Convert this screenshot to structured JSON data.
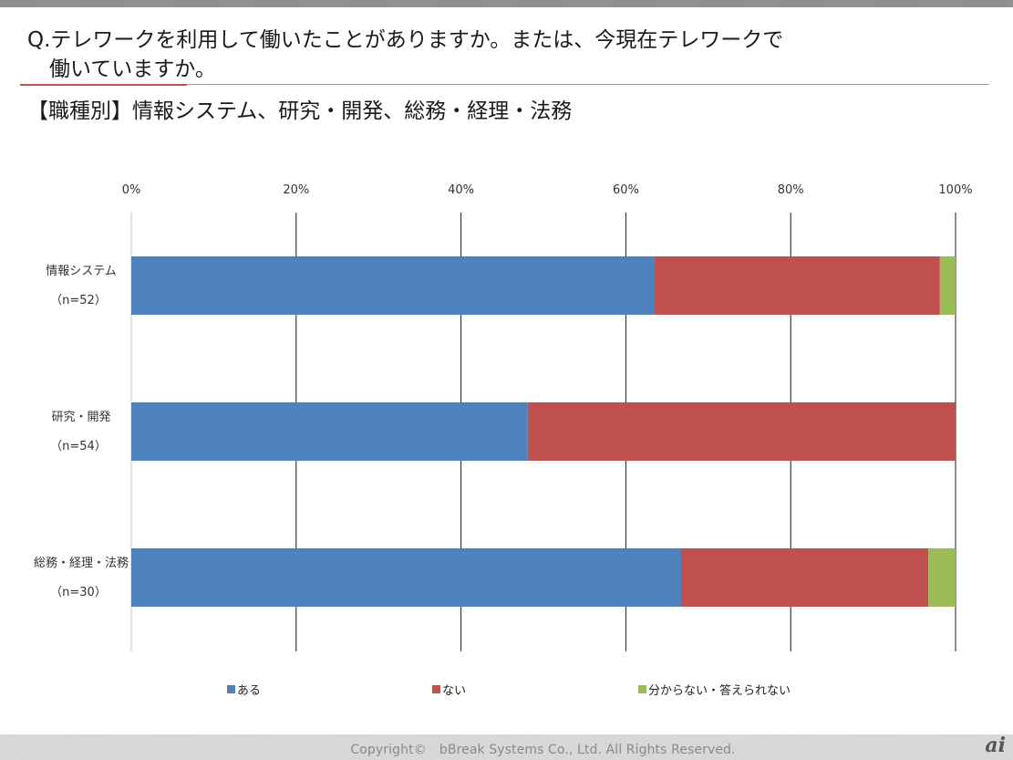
{
  "header": {
    "question_line1": "Q.テレワークを利用して働いたことがありますか。または、今現在テレワークで",
    "question_line2": "働いていますか。",
    "subtitle": "【職種別】情報システム、研究・開発、総務・経理・法務"
  },
  "chart_data": {
    "type": "bar",
    "orientation": "horizontal",
    "stacked": true,
    "percent_stacked": true,
    "title": "【職種別】情報システム、研究・開発、総務・経理・法務",
    "categories": [
      {
        "name": "情報システム",
        "n": "（n=52）"
      },
      {
        "name": "研究・開発",
        "n": "（n=54）"
      },
      {
        "name": "総務・経理・法務",
        "n": "（n=30）"
      }
    ],
    "series": [
      {
        "name": "ある",
        "color": "#4f81bd",
        "values": [
          63.5,
          48.1,
          66.7
        ]
      },
      {
        "name": "ない",
        "color": "#c0504d",
        "values": [
          34.6,
          51.9,
          30.0
        ]
      },
      {
        "name": "分からない・答えられない",
        "color": "#9bbb59",
        "values": [
          1.9,
          0,
          3.3
        ]
      }
    ],
    "xlim": [
      0,
      100
    ],
    "xticks": [
      "0%",
      "20%",
      "40%",
      "60%",
      "80%",
      "100%"
    ],
    "xaxis_position": "top",
    "grid": true,
    "legend_position": "bottom"
  },
  "footer": {
    "copyright": "Copyright©　bBreak Systems Co., Ltd.  All Rights Reserved.",
    "logo": "ai"
  }
}
